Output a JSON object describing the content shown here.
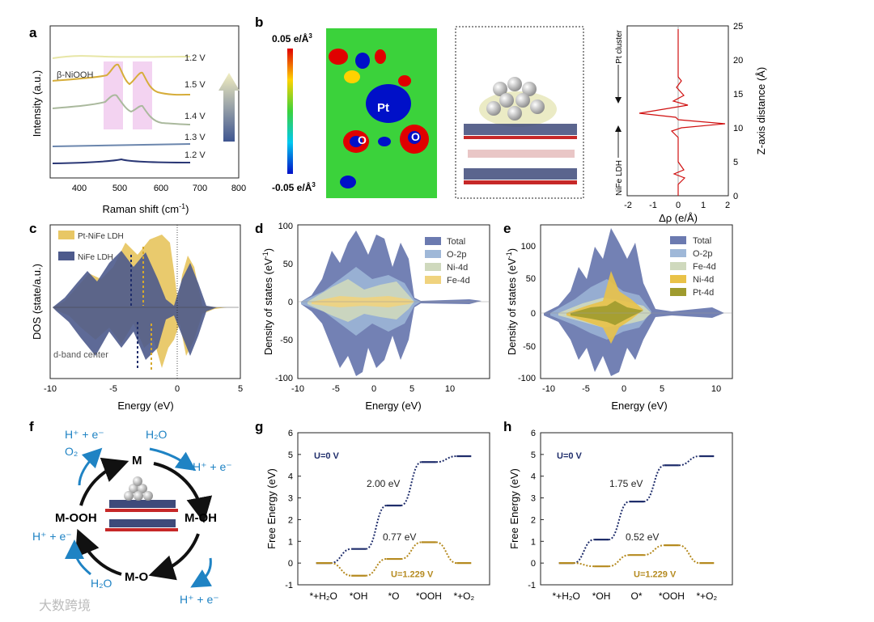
{
  "panel_labels": [
    "a",
    "b",
    "c",
    "d",
    "e",
    "f",
    "g",
    "h"
  ],
  "panel_a": {
    "xlabel": "Raman shift (cm",
    "xlabel_sup": "-1",
    "xlabel_end": ")",
    "ylabel": "Intensity (a.u.)",
    "annotation": "β-NiOOH",
    "curve_labels": [
      "1.2 V",
      "1.5 V",
      "1.4 V",
      "1.3 V",
      "1.2 V"
    ],
    "colors": [
      "#e7e6a6",
      "#d6ad3a",
      "#aab99d",
      "#6b86ad",
      "#2a3775"
    ],
    "x_ticks": [
      "400",
      "500",
      "600",
      "700",
      "800"
    ]
  },
  "panel_b": {
    "colorbar_max": "0.05 e/Å",
    "colorbar_min": "-0.05 e/Å",
    "colorbar_sup": "3",
    "atom_labels": [
      "Pt",
      "O",
      "O"
    ],
    "profile_labels": [
      "Pt cluster",
      "NiFe LDH"
    ],
    "xlabel": "Δρ (e/Å)",
    "ylabel": "Z-axis distance (Å)",
    "x_ticks": [
      "-2",
      "-1",
      "0",
      "1",
      "2"
    ],
    "y_ticks": [
      "0",
      "5",
      "10",
      "15",
      "20",
      "25"
    ]
  },
  "panel_c": {
    "legend": [
      "Pt-NiFe LDH",
      "NiFe LDH"
    ],
    "colors": [
      "#e8c765",
      "#4d5a8c"
    ],
    "annotation": "d-band center",
    "xlabel": "Energy (eV)",
    "ylabel": "DOS (state/a.u.)",
    "x_ticks": [
      "-10",
      "-5",
      "0",
      "5"
    ]
  },
  "panel_d": {
    "legend": [
      "Total",
      "O-2p",
      "Ni-4d",
      "Fe-4d"
    ],
    "colors": [
      "#6b7ab0",
      "#9fb8d8",
      "#cfd9bd",
      "#f0d37e"
    ],
    "xlabel": "Energy (eV)",
    "ylabel": "Density of states (eV",
    "ylabel_sup": "-1",
    "ylabel_end": ")",
    "x_ticks": [
      "-10",
      "-5",
      "0",
      "5",
      "10"
    ],
    "y_ticks": [
      "100",
      "50",
      "0",
      "-50",
      "-100"
    ]
  },
  "panel_e": {
    "legend": [
      "Total",
      "O-2p",
      "Fe-4d",
      "Ni-4d",
      "Pt-4d"
    ],
    "colors": [
      "#6b7ab0",
      "#9fb8d8",
      "#cfd9bd",
      "#e9c248",
      "#9f9b2e"
    ],
    "xlabel": "Energy (eV)",
    "ylabel": "Density of states (eV",
    "ylabel_sup": "-1",
    "ylabel_end": ")",
    "x_ticks": [
      "-10",
      "-5",
      "0",
      "5",
      "10"
    ],
    "y_ticks": [
      "100",
      "50",
      "0",
      "-50",
      "-100"
    ]
  },
  "panel_f": {
    "states": [
      "M",
      "M-OH",
      "M-O",
      "M-OOH"
    ],
    "species": [
      "H",
      "+",
      " + e",
      "-",
      "H",
      "2",
      "O"
    ],
    "texts": {
      "h2o": "H₂O",
      "hp_e": "H⁺ + e⁻",
      "o2": "O₂"
    }
  },
  "chart_data": [
    {
      "panel": "g",
      "type": "line",
      "title": "",
      "xlabel": "",
      "ylabel": "Free Energy (eV)",
      "categories": [
        "*+H₂O",
        "*OH",
        "*O",
        "*OOH",
        "*+O₂"
      ],
      "ylim": [
        -1,
        6
      ],
      "series": [
        {
          "name": "U=0 V",
          "color": "#1f2d6b",
          "values": [
            0,
            0.65,
            2.65,
            4.65,
            4.92
          ]
        },
        {
          "name": "U=1.229 V",
          "color": "#b58a1f",
          "values": [
            0,
            -0.58,
            0.19,
            0.96,
            0.0
          ]
        }
      ],
      "annotations": [
        "U=0 V",
        "U=1.229 V",
        "2.00 eV",
        "0.77 eV"
      ]
    },
    {
      "panel": "h",
      "type": "line",
      "title": "",
      "xlabel": "",
      "ylabel": "Free Energy (eV)",
      "categories": [
        "*+H₂O",
        "*OH",
        "O*",
        "*OOH",
        "*+O₂"
      ],
      "ylim": [
        -1,
        6
      ],
      "series": [
        {
          "name": "U=0 V",
          "color": "#1f2d6b",
          "values": [
            0,
            1.08,
            2.83,
            4.5,
            4.92
          ]
        },
        {
          "name": "U=1.229 V",
          "color": "#b58a1f",
          "values": [
            0,
            -0.15,
            0.37,
            0.82,
            0.0
          ]
        }
      ],
      "annotations": [
        "U=0 V",
        "U=1.229 V",
        "1.75 eV",
        "0.52 eV"
      ]
    }
  ],
  "watermark": "大数跨境"
}
